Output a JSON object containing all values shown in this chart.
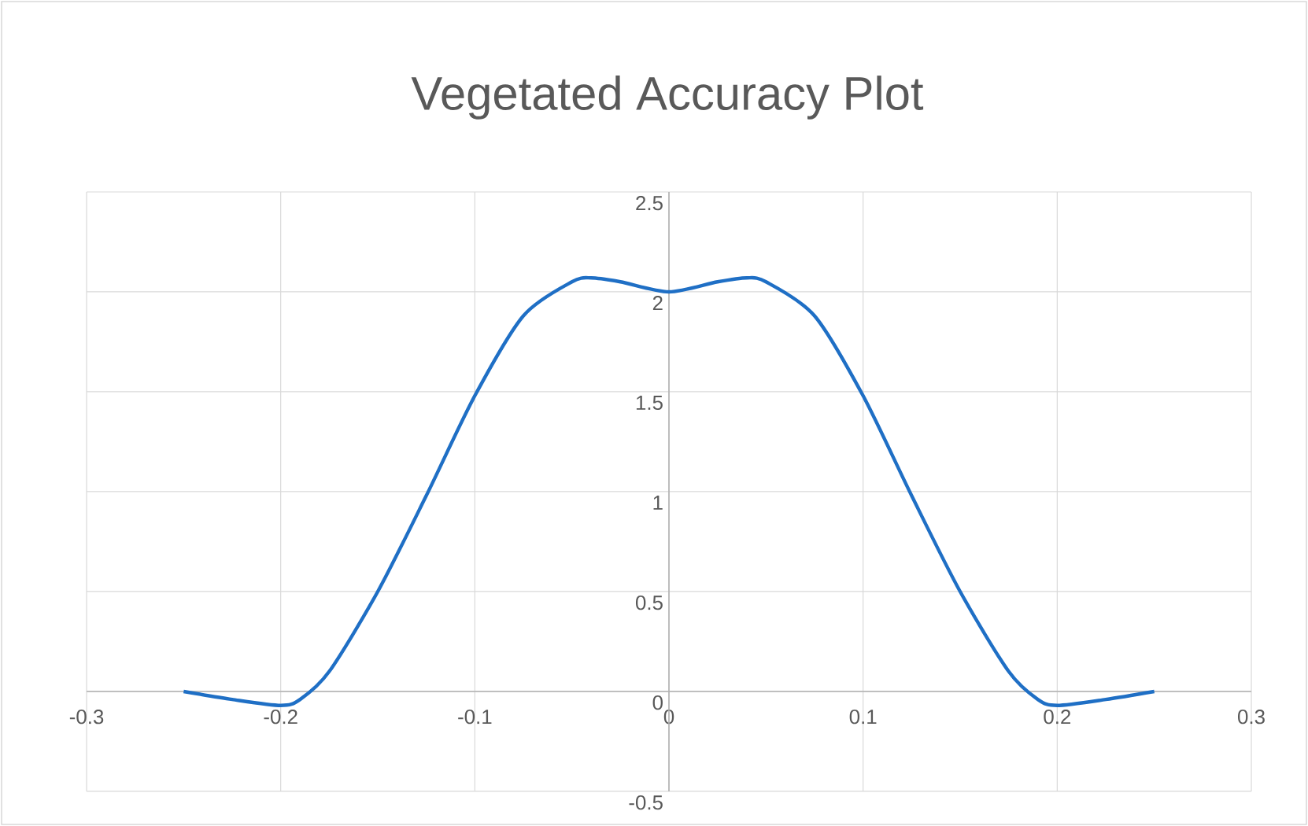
{
  "chart_data": {
    "type": "line",
    "title": "Vegetated Accuracy Plot",
    "x": [
      -0.25,
      -0.225,
      -0.2,
      -0.19,
      -0.175,
      -0.15,
      -0.125,
      -0.1,
      -0.075,
      -0.05,
      -0.04,
      -0.025,
      0,
      0.025,
      0.04,
      0.05,
      0.075,
      0.1,
      0.125,
      0.15,
      0.175,
      0.19,
      0.2,
      0.225,
      0.25
    ],
    "series": [
      {
        "color": "#1f6fc5",
        "values": [
          0,
          -0.04,
          -0.07,
          -0.04,
          0.1,
          0.5,
          0.98,
          1.48,
          1.88,
          2.05,
          2.07,
          2.05,
          2.0,
          2.05,
          2.07,
          2.05,
          1.88,
          1.48,
          0.98,
          0.5,
          0.1,
          -0.04,
          -0.07,
          -0.04,
          0
        ]
      }
    ],
    "xlim": [
      -0.3,
      0.3
    ],
    "ylim": [
      -0.5,
      2.5
    ],
    "xticks": [
      -0.3,
      -0.2,
      -0.1,
      0,
      0.1,
      0.2,
      0.3
    ],
    "yticks": [
      -0.5,
      0,
      0.5,
      1,
      1.5,
      2,
      2.5
    ],
    "grid": true,
    "marker": "none",
    "line_style": "solid"
  }
}
